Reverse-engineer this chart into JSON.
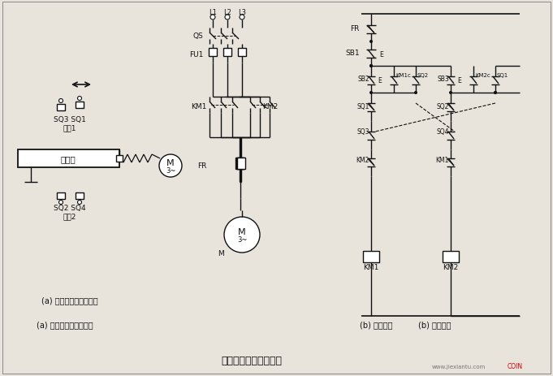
{
  "title": "自动循环往复控制线路",
  "subtitle_a": "(a) 工作自动循环示意图",
  "subtitle_b": "(b) 控制线路",
  "bg_color": "#e8e4dc",
  "line_color": "#111111",
  "text_color": "#111111",
  "fig_width": 6.81,
  "fig_height": 4.64,
  "dpi": 100
}
